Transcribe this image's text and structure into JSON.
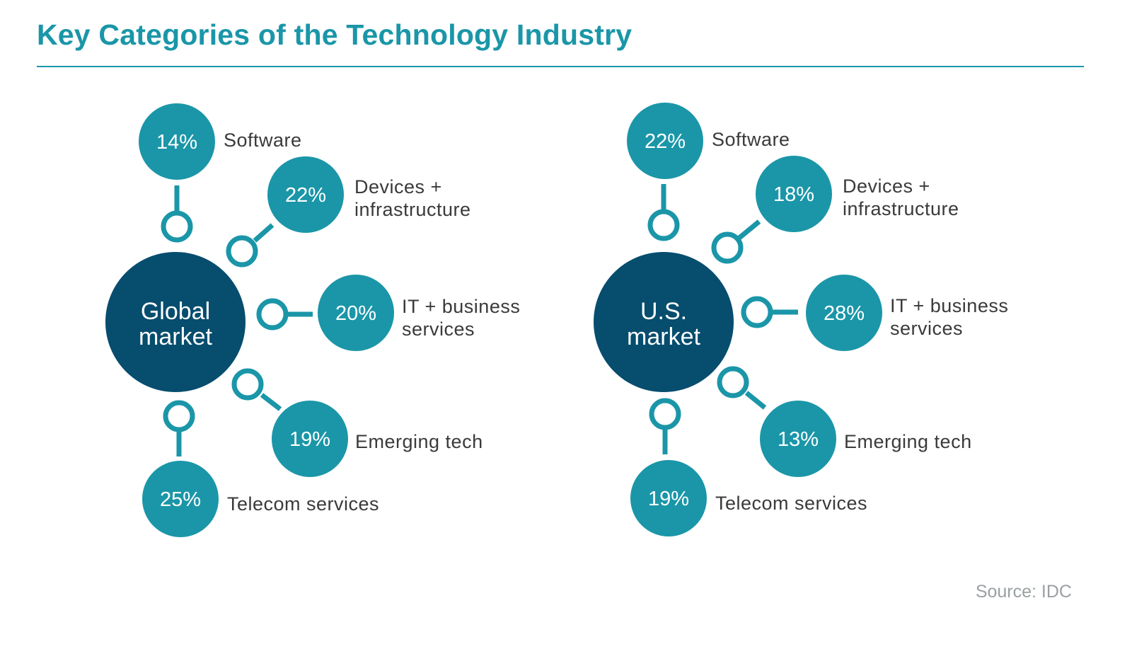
{
  "title": "Key Categories of the Technology Industry",
  "source": "Source: IDC",
  "colors": {
    "accent": "#1a96a8",
    "center": "#064d6e",
    "text": "#3a3a3a",
    "source": "#9aa0a3"
  },
  "chart_data": [
    {
      "type": "diagram",
      "center_label": [
        "Global",
        "market"
      ],
      "categories": [
        {
          "name": "Software",
          "label_lines": [
            "Software"
          ],
          "value": 14,
          "display": "14%"
        },
        {
          "name": "Devices + infrastructure",
          "label_lines": [
            "Devices +",
            "infrastructure"
          ],
          "value": 22,
          "display": "22%"
        },
        {
          "name": "IT + business services",
          "label_lines": [
            "IT + business",
            "services"
          ],
          "value": 20,
          "display": "20%"
        },
        {
          "name": "Emerging tech",
          "label_lines": [
            "Emerging tech"
          ],
          "value": 19,
          "display": "19%"
        },
        {
          "name": "Telecom services",
          "label_lines": [
            "Telecom services"
          ],
          "value": 25,
          "display": "25%"
        }
      ]
    },
    {
      "type": "diagram",
      "center_label": [
        "U.S.",
        "market"
      ],
      "categories": [
        {
          "name": "Software",
          "label_lines": [
            "Software"
          ],
          "value": 22,
          "display": "22%"
        },
        {
          "name": "Devices + infrastructure",
          "label_lines": [
            "Devices +",
            "infrastructure"
          ],
          "value": 18,
          "display": "18%"
        },
        {
          "name": "IT + business services",
          "label_lines": [
            "IT + business",
            "services"
          ],
          "value": 28,
          "display": "28%"
        },
        {
          "name": "Emerging tech",
          "label_lines": [
            "Emerging tech"
          ],
          "value": 13,
          "display": "13%"
        },
        {
          "name": "Telecom services",
          "label_lines": [
            "Telecom services"
          ],
          "value": 19,
          "display": "19%"
        }
      ]
    }
  ]
}
